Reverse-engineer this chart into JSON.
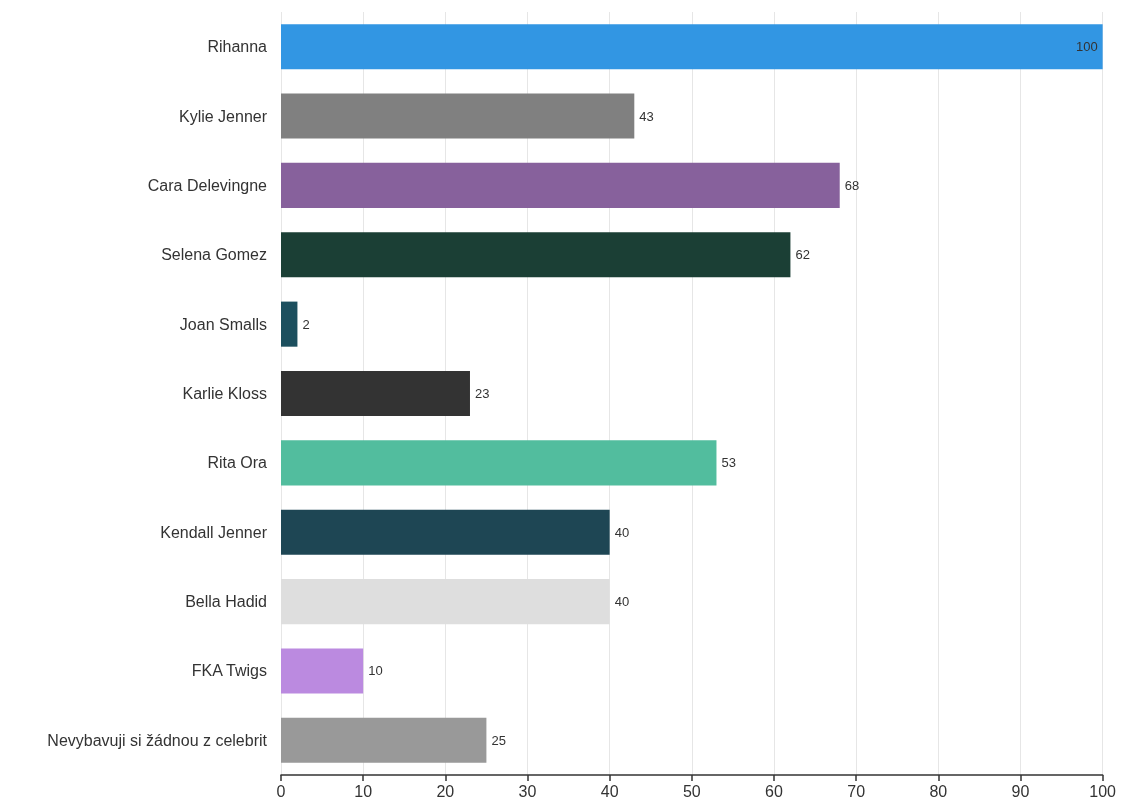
{
  "chart_data": {
    "type": "bar",
    "orientation": "horizontal",
    "categories": [
      "Rihanna",
      "Kylie Jenner",
      "Cara Delevingne",
      "Selena Gomez",
      "Joan Smalls",
      "Karlie Kloss",
      "Rita Ora",
      "Kendall Jenner",
      "Bella Hadid",
      "FKA Twigs",
      "Nevybavuji si žádnou z celebrit"
    ],
    "values": [
      100,
      43,
      68,
      62,
      2,
      23,
      53,
      40,
      40,
      10,
      25
    ],
    "colors": [
      "#3296e3",
      "#808080",
      "#87619c",
      "#1b3f35",
      "#1c4f5e",
      "#333333",
      "#52bd9e",
      "#1e4654",
      "#dedede",
      "#bb8ae0",
      "#999999"
    ],
    "xlim": [
      0,
      100
    ],
    "xticks": [
      0,
      10,
      20,
      30,
      40,
      50,
      60,
      70,
      80,
      90,
      100
    ],
    "grid": "x",
    "data_labels": true
  }
}
